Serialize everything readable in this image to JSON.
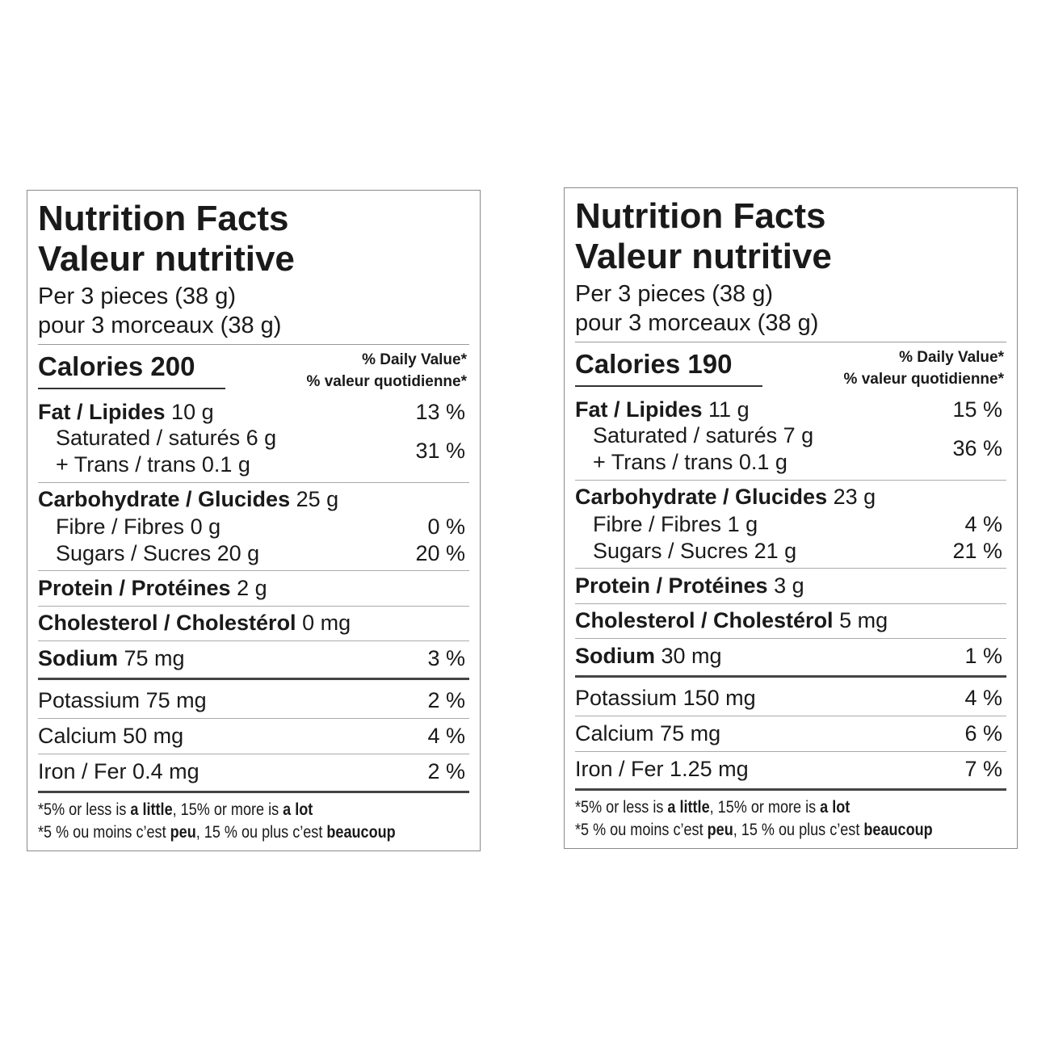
{
  "labels": [
    {
      "title": [
        "Nutrition Facts",
        "Valeur nutritive"
      ],
      "serving": [
        "Per 3 pieces (38 g)",
        "pour 3 morceaux (38 g)"
      ],
      "calories": {
        "label": "Calories",
        "value": "200"
      },
      "daily_value": [
        "% Daily Value*",
        "% valeur quotidienne*"
      ],
      "fat": {
        "name": "Fat / Lipides",
        "amount": "10 g",
        "dv": "13 %"
      },
      "saturated": {
        "name": "Saturated / saturés",
        "amount": "6 g"
      },
      "trans": {
        "name": "+ Trans / trans",
        "amount": "0.1 g"
      },
      "saturated_trans_dv": "31 %",
      "carbohydrate": {
        "name": "Carbohydrate / Glucides",
        "amount": "25 g"
      },
      "fibre": {
        "name": "Fibre / Fibres",
        "amount": "0 g",
        "dv": "0 %"
      },
      "sugars": {
        "name": "Sugars / Sucres",
        "amount": "20 g",
        "dv": "20 %"
      },
      "protein": {
        "name": "Protein / Protéines",
        "amount": "2 g"
      },
      "cholesterol": {
        "name": "Cholesterol / Cholestérol",
        "amount": "0 mg"
      },
      "sodium": {
        "name": "Sodium",
        "amount": "75 mg",
        "dv": "3 %"
      },
      "potassium": {
        "name": "Potassium",
        "amount": "75 mg",
        "dv": "2 %"
      },
      "calcium": {
        "name": "Calcium",
        "amount": "50 mg",
        "dv": "4 %"
      },
      "iron": {
        "name": "Iron / Fer",
        "amount": "0.4 mg",
        "dv": "2 %"
      },
      "footnote": [
        [
          "*5% or less is",
          "a little",
          ", 15% or more is",
          "a lot"
        ],
        [
          "*5 % ou moins c’est",
          "peu",
          ", 15 % ou plus c’est",
          "beaucoup"
        ]
      ]
    },
    {
      "title": [
        "Nutrition Facts",
        "Valeur nutritive"
      ],
      "serving": [
        "Per 3 pieces (38 g)",
        "pour 3 morceaux (38 g)"
      ],
      "calories": {
        "label": "Calories",
        "value": "190"
      },
      "daily_value": [
        "% Daily Value*",
        "% valeur quotidienne*"
      ],
      "fat": {
        "name": "Fat / Lipides",
        "amount": "11 g",
        "dv": "15 %"
      },
      "saturated": {
        "name": "Saturated / saturés",
        "amount": "7 g"
      },
      "trans": {
        "name": "+ Trans / trans",
        "amount": "0.1 g"
      },
      "saturated_trans_dv": "36 %",
      "carbohydrate": {
        "name": "Carbohydrate / Glucides",
        "amount": "23 g"
      },
      "fibre": {
        "name": "Fibre / Fibres",
        "amount": "1 g",
        "dv": "4 %"
      },
      "sugars": {
        "name": "Sugars / Sucres",
        "amount": "21 g",
        "dv": "21 %"
      },
      "protein": {
        "name": "Protein / Protéines",
        "amount": "3 g"
      },
      "cholesterol": {
        "name": "Cholesterol / Cholestérol",
        "amount": "5 mg"
      },
      "sodium": {
        "name": "Sodium",
        "amount": "30 mg",
        "dv": "1 %"
      },
      "potassium": {
        "name": "Potassium",
        "amount": "150 mg",
        "dv": "4 %"
      },
      "calcium": {
        "name": "Calcium",
        "amount": "75 mg",
        "dv": "6 %"
      },
      "iron": {
        "name": "Iron / Fer",
        "amount": "1.25 mg",
        "dv": "7 %"
      },
      "footnote": [
        [
          "*5% or less is",
          "a little",
          ", 15% or more is",
          "a lot"
        ],
        [
          "*5 % ou moins c’est",
          "peu",
          ", 15 % ou plus c’est",
          "beaucoup"
        ]
      ]
    }
  ]
}
